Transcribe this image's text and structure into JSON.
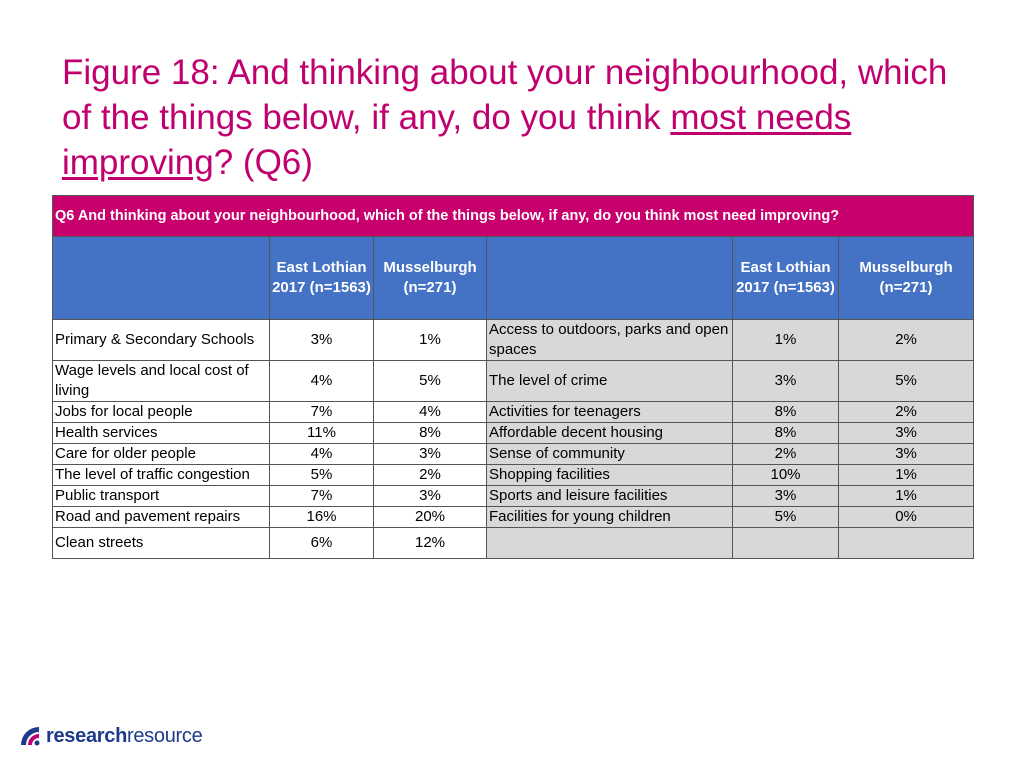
{
  "title": {
    "part1": "Figure 18: And thinking about your neighbourhood, which of the things below, if any, do you think ",
    "underlined": "most needs improving",
    "part2": "? (Q6)"
  },
  "table": {
    "caption": "Q6 And thinking about your neighbourhood, which of the things below, if any, do you think most need improving?",
    "headers": {
      "col1": "East Lothian 2017 (n=1563)",
      "col2": "Musselburgh (n=271)",
      "col3": "East Lothian 2017 (n=1563)",
      "col4": "Musselburgh (n=271)"
    },
    "rows": [
      {
        "left_label": "Primary & Secondary Schools",
        "left_el": "3%",
        "left_mb": "1%",
        "right_label": "Access to outdoors, parks and open spaces",
        "right_el": "1%",
        "right_mb": "2%"
      },
      {
        "left_label": "Wage levels and local cost of living",
        "left_el": "4%",
        "left_mb": "5%",
        "right_label": "The level of crime",
        "right_el": "3%",
        "right_mb": "5%"
      },
      {
        "left_label": "Jobs for local people",
        "left_el": "7%",
        "left_mb": "4%",
        "right_label": "Activities for teenagers",
        "right_el": "8%",
        "right_mb": "2%"
      },
      {
        "left_label": "Health services",
        "left_el": "11%",
        "left_mb": "8%",
        "right_label": "Affordable decent housing",
        "right_el": "8%",
        "right_mb": "3%"
      },
      {
        "left_label": "Care for older people",
        "left_el": "4%",
        "left_mb": "3%",
        "right_label": "Sense of community",
        "right_el": "2%",
        "right_mb": "3%"
      },
      {
        "left_label": "The level of traffic congestion",
        "left_el": "5%",
        "left_mb": "2%",
        "right_label": "Shopping facilities",
        "right_el": "10%",
        "right_mb": "1%"
      },
      {
        "left_label": "Public transport",
        "left_el": "7%",
        "left_mb": "3%",
        "right_label": "Sports and leisure facilities",
        "right_el": "3%",
        "right_mb": "1%"
      },
      {
        "left_label": "Road and pavement repairs",
        "left_el": "16%",
        "left_mb": "20%",
        "right_label": "Facilities for young children",
        "right_el": "5%",
        "right_mb": "0%"
      },
      {
        "left_label": "Clean streets",
        "left_el": "6%",
        "left_mb": "12%",
        "right_label": "",
        "right_el": "",
        "right_mb": ""
      }
    ]
  },
  "logo": {
    "research": "research",
    "resource": "resource",
    "icon": "research-resource-logo-icon"
  },
  "colors": {
    "title": "#c0006e",
    "caption_bg": "#c8006e",
    "header_bg": "#4472c4",
    "right_cells_bg": "#d8d8d8"
  }
}
